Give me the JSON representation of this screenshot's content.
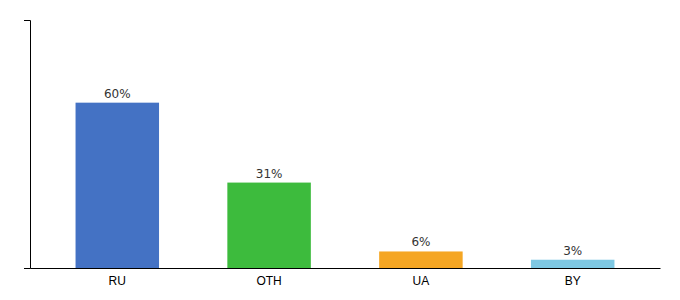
{
  "chart_data": {
    "type": "bar",
    "categories": [
      "RU",
      "OTH",
      "UA",
      "BY"
    ],
    "values": [
      60,
      31,
      6,
      3
    ],
    "value_labels": [
      "60%",
      "31%",
      "6%",
      "3%"
    ],
    "colors": [
      "#4472c4",
      "#3dbb3d",
      "#f5a623",
      "#7ec8e3"
    ],
    "ylim": [
      0,
      90
    ],
    "yticks": [],
    "data_labels": true,
    "tick_labels": "x"
  }
}
